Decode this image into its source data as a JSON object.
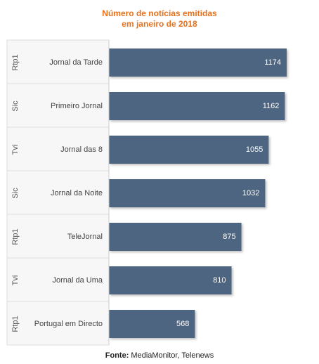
{
  "chart_data": {
    "type": "bar",
    "orientation": "horizontal",
    "title_lines": [
      "Número de notícias emitidas",
      "em janeiro de 2018"
    ],
    "categories": [
      {
        "channel": "Rtp1",
        "program": "Jornal da Tarde",
        "value": 1174
      },
      {
        "channel": "Sic",
        "program": "Primeiro Jornal",
        "value": 1162
      },
      {
        "channel": "Tvi",
        "program": "Jornal das 8",
        "value": 1055
      },
      {
        "channel": "Sic",
        "program": "Jornal da Noite",
        "value": 1032
      },
      {
        "channel": "Rtp1",
        "program": "TeleJornal",
        "value": 875
      },
      {
        "channel": "Tvi",
        "program": "Jornal da Uma",
        "value": 810
      },
      {
        "channel": "Rtp1",
        "program": "Portugal em Directo",
        "value": 568
      }
    ],
    "xlim": [
      0,
      1200
    ],
    "bar_color": "#4e6580",
    "title_color": "#e8701a",
    "data_labels": "inside-end",
    "grid": false
  },
  "source": {
    "label": "Fonte:",
    "text": "MediaMonitor, Telenews"
  }
}
